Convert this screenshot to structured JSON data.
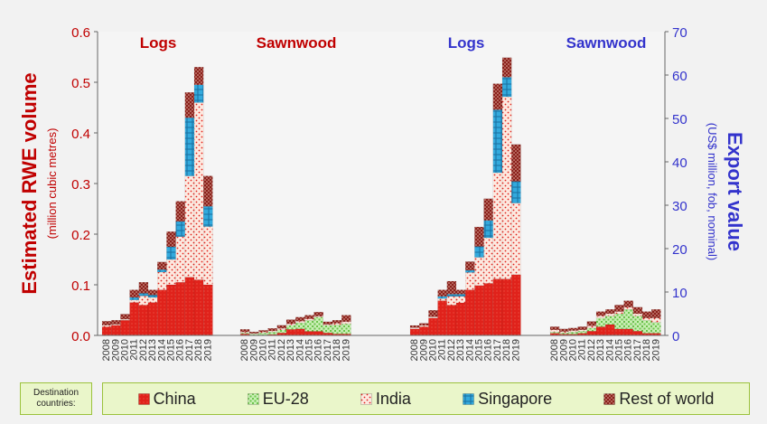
{
  "chart_data": {
    "type": "bar",
    "stacked": true,
    "years": [
      "2008",
      "2009",
      "2010",
      "2011",
      "2012",
      "2013",
      "2014",
      "2015",
      "2016",
      "2017",
      "2018",
      "2019"
    ],
    "left_axis": {
      "label": "Estimated RWE volume",
      "sublabel": "(million cubic metres)",
      "ylim": [
        0,
        0.6
      ],
      "ticks": [
        "0.0",
        "0.1",
        "0.2",
        "0.3",
        "0.4",
        "0.5",
        "0.6"
      ],
      "color": "#c00000"
    },
    "right_axis": {
      "label": "Export value",
      "sublabel": "(US$ million, fob, nominal)",
      "ylim": [
        0,
        70
      ],
      "ticks": [
        "0",
        "10",
        "20",
        "30",
        "40",
        "50",
        "60",
        "70"
      ],
      "color": "#3333cc"
    },
    "series_names": [
      "China",
      "EU-28",
      "India",
      "Singapore",
      "Rest of world"
    ],
    "series_colors": [
      "#e0221b",
      "#a8e08c",
      "#f7d0c0",
      "#33aadd",
      "#a8302a"
    ],
    "panels": [
      {
        "title": "Logs",
        "title_color": "#c00000",
        "axis": "left",
        "series": [
          {
            "name": "China",
            "values": [
              0.017,
              0.02,
              0.03,
              0.065,
              0.06,
              0.065,
              0.09,
              0.1,
              0.105,
              0.115,
              0.11,
              0.1
            ]
          },
          {
            "name": "EU-28",
            "values": [
              0,
              0,
              0,
              0,
              0,
              0,
              0,
              0,
              0,
              0,
              0,
              0
            ]
          },
          {
            "name": "India",
            "values": [
              0.003,
              0.002,
              0.002,
              0.005,
              0.018,
              0.01,
              0.035,
              0.05,
              0.09,
              0.2,
              0.35,
              0.115
            ]
          },
          {
            "name": "Singapore",
            "values": [
              0,
              0,
              0,
              0.005,
              0.005,
              0.005,
              0.005,
              0.025,
              0.03,
              0.115,
              0.035,
              0.04
            ]
          },
          {
            "name": "Rest of world",
            "values": [
              0.008,
              0.008,
              0.01,
              0.015,
              0.022,
              0.01,
              0.015,
              0.03,
              0.04,
              0.05,
              0.035,
              0.06
            ]
          }
        ]
      },
      {
        "title": "Sawnwood",
        "title_color": "#c00000",
        "axis": "left",
        "series": [
          {
            "name": "China",
            "values": [
              0.003,
              0.001,
              0.001,
              0.002,
              0.005,
              0.012,
              0.013,
              0.008,
              0.008,
              0.005,
              0.003,
              0.003
            ]
          },
          {
            "name": "EU-28",
            "values": [
              0.002,
              0.002,
              0.004,
              0.005,
              0.006,
              0.008,
              0.012,
              0.022,
              0.028,
              0.015,
              0.018,
              0.02
            ]
          },
          {
            "name": "India",
            "values": [
              0.002,
              0.001,
              0.002,
              0.002,
              0.003,
              0.003,
              0.003,
              0.003,
              0.002,
              0.002,
              0.003,
              0.004
            ]
          },
          {
            "name": "Singapore",
            "values": [
              0,
              0,
              0,
              0,
              0,
              0,
              0,
              0,
              0,
              0,
              0,
              0
            ]
          },
          {
            "name": "Rest of world",
            "values": [
              0.005,
              0.003,
              0.003,
              0.005,
              0.006,
              0.008,
              0.008,
              0.007,
              0.008,
              0.005,
              0.006,
              0.013
            ]
          }
        ]
      },
      {
        "title": "Logs",
        "title_color": "#3333cc",
        "axis": "right",
        "series": [
          {
            "name": "China",
            "values": [
              1.5,
              2.0,
              4.0,
              8.0,
              7.0,
              7.5,
              10.5,
              11.5,
              12.0,
              13.0,
              13.0,
              14.0
            ]
          },
          {
            "name": "EU-28",
            "values": [
              0,
              0,
              0,
              0,
              0,
              0,
              0,
              0,
              0,
              0,
              0,
              0
            ]
          },
          {
            "name": "India",
            "values": [
              0.3,
              0.3,
              0.3,
              0.5,
              2.0,
              1.5,
              4.0,
              6.5,
              10.5,
              24.5,
              42.0,
              16.5
            ]
          },
          {
            "name": "Singapore",
            "values": [
              0,
              0,
              0,
              0.5,
              0.5,
              0.5,
              0.5,
              2.5,
              4.0,
              14.5,
              4.5,
              5.0
            ]
          },
          {
            "name": "Rest of world",
            "values": [
              0.5,
              0.5,
              1.5,
              1.5,
              3.0,
              1.0,
              2.0,
              4.5,
              5.0,
              6.0,
              4.5,
              8.5
            ]
          }
        ]
      },
      {
        "title": "Sawnwood",
        "title_color": "#3333cc",
        "axis": "right",
        "series": [
          {
            "name": "China",
            "values": [
              0.5,
              0.3,
              0.3,
              0.5,
              1.0,
              2.0,
              2.5,
              1.5,
              1.5,
              1.0,
              0.5,
              0.5
            ]
          },
          {
            "name": "EU-28",
            "values": [
              0.3,
              0.3,
              0.5,
              0.5,
              0.7,
              2.0,
              2.0,
              3.5,
              4.5,
              3.5,
              3.0,
              2.5
            ]
          },
          {
            "name": "India",
            "values": [
              0.5,
              0.3,
              0.3,
              0.3,
              0.5,
              0.5,
              0.5,
              0.5,
              0.5,
              0.5,
              0.5,
              1.0
            ]
          },
          {
            "name": "Singapore",
            "values": [
              0,
              0,
              0,
              0,
              0,
              0,
              0,
              0,
              0,
              0,
              0,
              0
            ]
          },
          {
            "name": "Rest of world",
            "values": [
              0.7,
              0.6,
              0.6,
              0.7,
              1.0,
              1.0,
              1.0,
              1.5,
              1.5,
              1.5,
              1.5,
              2.0
            ]
          }
        ]
      }
    ],
    "legend": {
      "title_line1": "Destination",
      "title_line2": "countries:",
      "placement": "bottom"
    }
  }
}
